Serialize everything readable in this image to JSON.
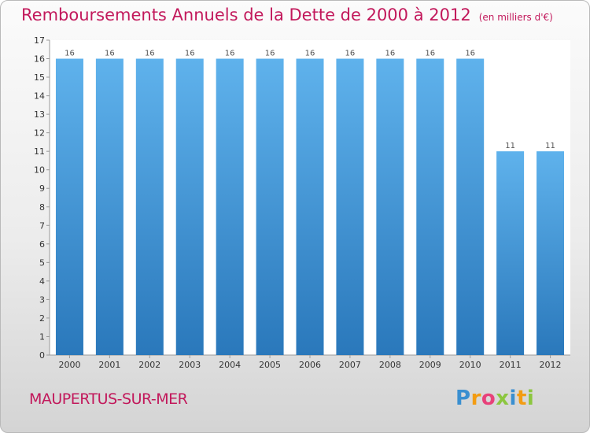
{
  "chart_data": {
    "type": "bar",
    "title": "Remboursements Annuels de la Dette de 2000 à 2012",
    "unit_note": "(en milliers d'€)",
    "categories": [
      "2000",
      "2001",
      "2002",
      "2003",
      "2004",
      "2005",
      "2006",
      "2007",
      "2008",
      "2009",
      "2010",
      "2011",
      "2012"
    ],
    "values": [
      16,
      16,
      16,
      16,
      16,
      16,
      16,
      16,
      16,
      16,
      16,
      11,
      11
    ],
    "data_labels": [
      "16",
      "16",
      "16",
      "16",
      "16",
      "16",
      "16",
      "16",
      "16",
      "16",
      "16",
      "11",
      "11"
    ],
    "ylim": [
      0,
      17
    ],
    "y_ticks": [
      0,
      1,
      2,
      3,
      4,
      5,
      6,
      7,
      8,
      9,
      10,
      11,
      12,
      13,
      14,
      15,
      16,
      17
    ],
    "grid": false,
    "bar_color": "#3a8fd0"
  },
  "town": "MAUPERTUS-SUR-MER",
  "logo": {
    "letters": [
      "P",
      "r",
      "o",
      "x",
      "i",
      "t",
      "i"
    ],
    "colors": [
      "#3a8fd0",
      "#f39c12",
      "#e8417a",
      "#8cc63f",
      "#3a8fd0",
      "#f39c12",
      "#8cc63f"
    ]
  },
  "colors": {
    "title": "#c2185b",
    "town": "#c2185b"
  }
}
